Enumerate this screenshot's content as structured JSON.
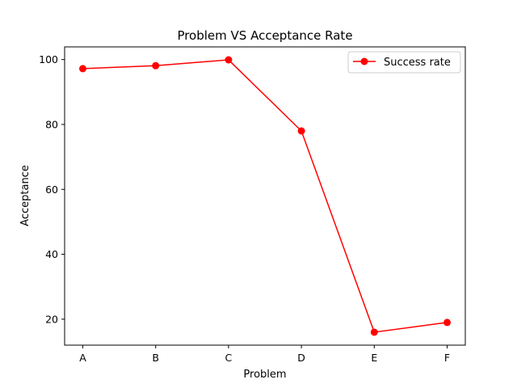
{
  "chart_data": {
    "type": "line",
    "title": "Problem VS Acceptance Rate",
    "xlabel": "Problem",
    "ylabel": "Acceptance",
    "categories": [
      "A",
      "B",
      "C",
      "D",
      "E",
      "F"
    ],
    "series": [
      {
        "name": "Success rate",
        "values": [
          97.2,
          98.1,
          99.9,
          78.0,
          16.0,
          19.0
        ],
        "color": "#ff0000",
        "marker": "circle"
      }
    ],
    "ylim": [
      12.0,
      103.9
    ],
    "yticks": [
      20,
      40,
      60,
      80,
      100
    ],
    "grid": false,
    "legend_position": "top-right"
  }
}
